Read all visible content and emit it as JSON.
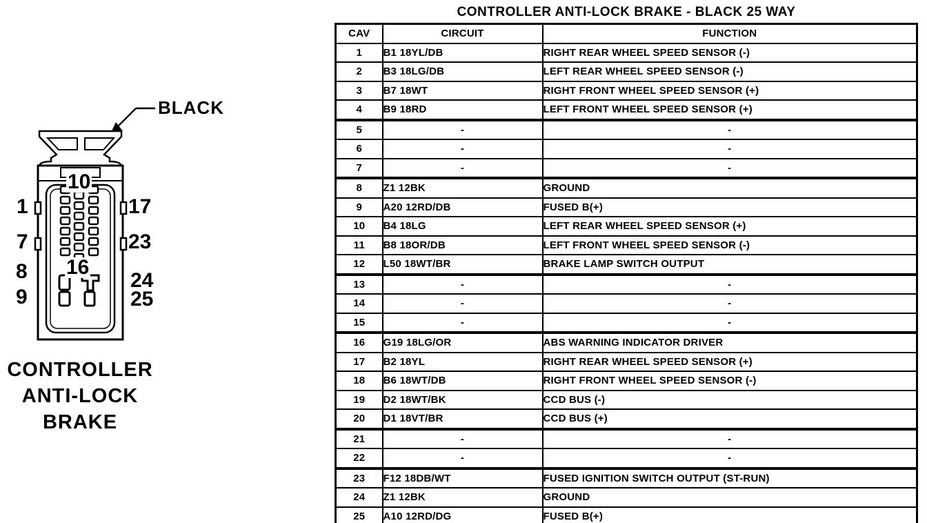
{
  "colors": {
    "ink": "#000000",
    "background": "#ffffff"
  },
  "diagram": {
    "connector_color_label": "BLACK",
    "caption_lines": [
      "CONTROLLER",
      "ANTI-LOCK",
      "BRAKE"
    ],
    "pin_labels": {
      "p1": "1",
      "p7": "7",
      "p8": "8",
      "p9": "9",
      "p10": "10",
      "p16": "16",
      "p17": "17",
      "p23": "23",
      "p24": "24",
      "p25": "25"
    }
  },
  "table": {
    "title": "CONTROLLER ANTI-LOCK BRAKE - BLACK 25 WAY",
    "headers": {
      "cav": "CAV",
      "circuit": "CIRCUIT",
      "function": "FUNCTION"
    },
    "rows": [
      {
        "cav": "1",
        "circuit": "B1 18YL/DB",
        "function": "RIGHT REAR WHEEL SPEED SENSOR (-)"
      },
      {
        "cav": "2",
        "circuit": "B3 18LG/DB",
        "function": "LEFT REAR WHEEL SPEED SENSOR (-)"
      },
      {
        "cav": "3",
        "circuit": "B7 18WT",
        "function": "RIGHT FRONT WHEEL SPEED SENSOR (+)"
      },
      {
        "cav": "4",
        "circuit": "B9 18RD",
        "function": "LEFT FRONT WHEEL SPEED SENSOR (+)",
        "group_end": true
      },
      {
        "cav": "5",
        "circuit": "-",
        "function": "-"
      },
      {
        "cav": "6",
        "circuit": "-",
        "function": "-"
      },
      {
        "cav": "7",
        "circuit": "-",
        "function": "-",
        "group_end": true
      },
      {
        "cav": "8",
        "circuit": "Z1 12BK",
        "function": "GROUND"
      },
      {
        "cav": "9",
        "circuit": "A20 12RD/DB",
        "function": "FUSED B(+)"
      },
      {
        "cav": "10",
        "circuit": "B4 18LG",
        "function": "LEFT REAR WHEEL SPEED SENSOR (+)"
      },
      {
        "cav": "11",
        "circuit": "B8 18OR/DB",
        "function": "LEFT FRONT WHEEL SPEED SENSOR (-)"
      },
      {
        "cav": "12",
        "circuit": "L50 18WT/BR",
        "function": "BRAKE LAMP SWITCH OUTPUT",
        "group_end": true
      },
      {
        "cav": "13",
        "circuit": "-",
        "function": "-"
      },
      {
        "cav": "14",
        "circuit": "-",
        "function": "-"
      },
      {
        "cav": "15",
        "circuit": "-",
        "function": "-",
        "group_end": true
      },
      {
        "cav": "16",
        "circuit": "G19 18LG/OR",
        "function": "ABS WARNING INDICATOR DRIVER"
      },
      {
        "cav": "17",
        "circuit": "B2 18YL",
        "function": "RIGHT REAR WHEEL SPEED SENSOR (+)"
      },
      {
        "cav": "18",
        "circuit": "B6 18WT/DB",
        "function": "RIGHT FRONT WHEEL SPEED SENSOR (-)"
      },
      {
        "cav": "19",
        "circuit": "D2 18WT/BK",
        "function": "CCD BUS (-)"
      },
      {
        "cav": "20",
        "circuit": "D1 18VT/BR",
        "function": "CCD BUS (+)",
        "group_end": true
      },
      {
        "cav": "21",
        "circuit": "-",
        "function": "-"
      },
      {
        "cav": "22",
        "circuit": "-",
        "function": "-",
        "group_end": true
      },
      {
        "cav": "23",
        "circuit": "F12 18DB/WT",
        "function": "FUSED IGNITION SWITCH OUTPUT (ST-RUN)"
      },
      {
        "cav": "24",
        "circuit": "Z1 12BK",
        "function": "GROUND"
      },
      {
        "cav": "25",
        "circuit": "A10 12RD/DG",
        "function": "FUSED B(+)"
      }
    ]
  }
}
